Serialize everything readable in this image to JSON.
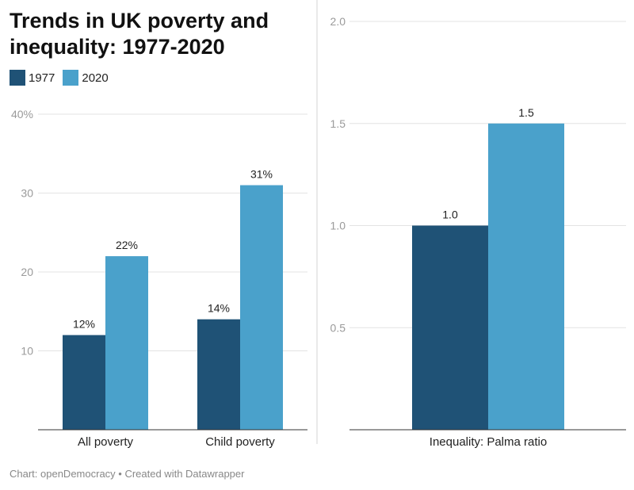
{
  "title": "Trends in UK poverty and inequality: 1977-2020",
  "legend": [
    {
      "label": "1977",
      "color": "#1f5276"
    },
    {
      "label": "2020",
      "color": "#4aa1cb"
    }
  ],
  "footer": "Chart: openDemocracy • Created with Datawrapper",
  "chart_data": [
    {
      "type": "bar",
      "categories": [
        "All poverty",
        "Child poverty"
      ],
      "series": [
        {
          "name": "1977",
          "values": [
            12,
            14
          ],
          "labels": [
            "12%",
            "14%"
          ]
        },
        {
          "name": "2020",
          "values": [
            22,
            31
          ],
          "labels": [
            "22%",
            "31%"
          ]
        }
      ],
      "ylim": [
        0,
        40
      ],
      "yticks": [
        10,
        20,
        30,
        40
      ],
      "ytick_labels": [
        "10",
        "20",
        "30",
        "40%"
      ],
      "grid": true
    },
    {
      "type": "bar",
      "categories": [
        "Inequality: Palma ratio"
      ],
      "series": [
        {
          "name": "1977",
          "values": [
            1.0
          ],
          "labels": [
            "1.0"
          ]
        },
        {
          "name": "2020",
          "values": [
            1.5
          ],
          "labels": [
            "1.5"
          ]
        }
      ],
      "ylim": [
        0,
        2.0
      ],
      "yticks": [
        0.5,
        1.0,
        1.5,
        2.0
      ],
      "ytick_labels": [
        "0.5",
        "1.0",
        "1.5",
        "2.0"
      ],
      "grid": true
    }
  ]
}
